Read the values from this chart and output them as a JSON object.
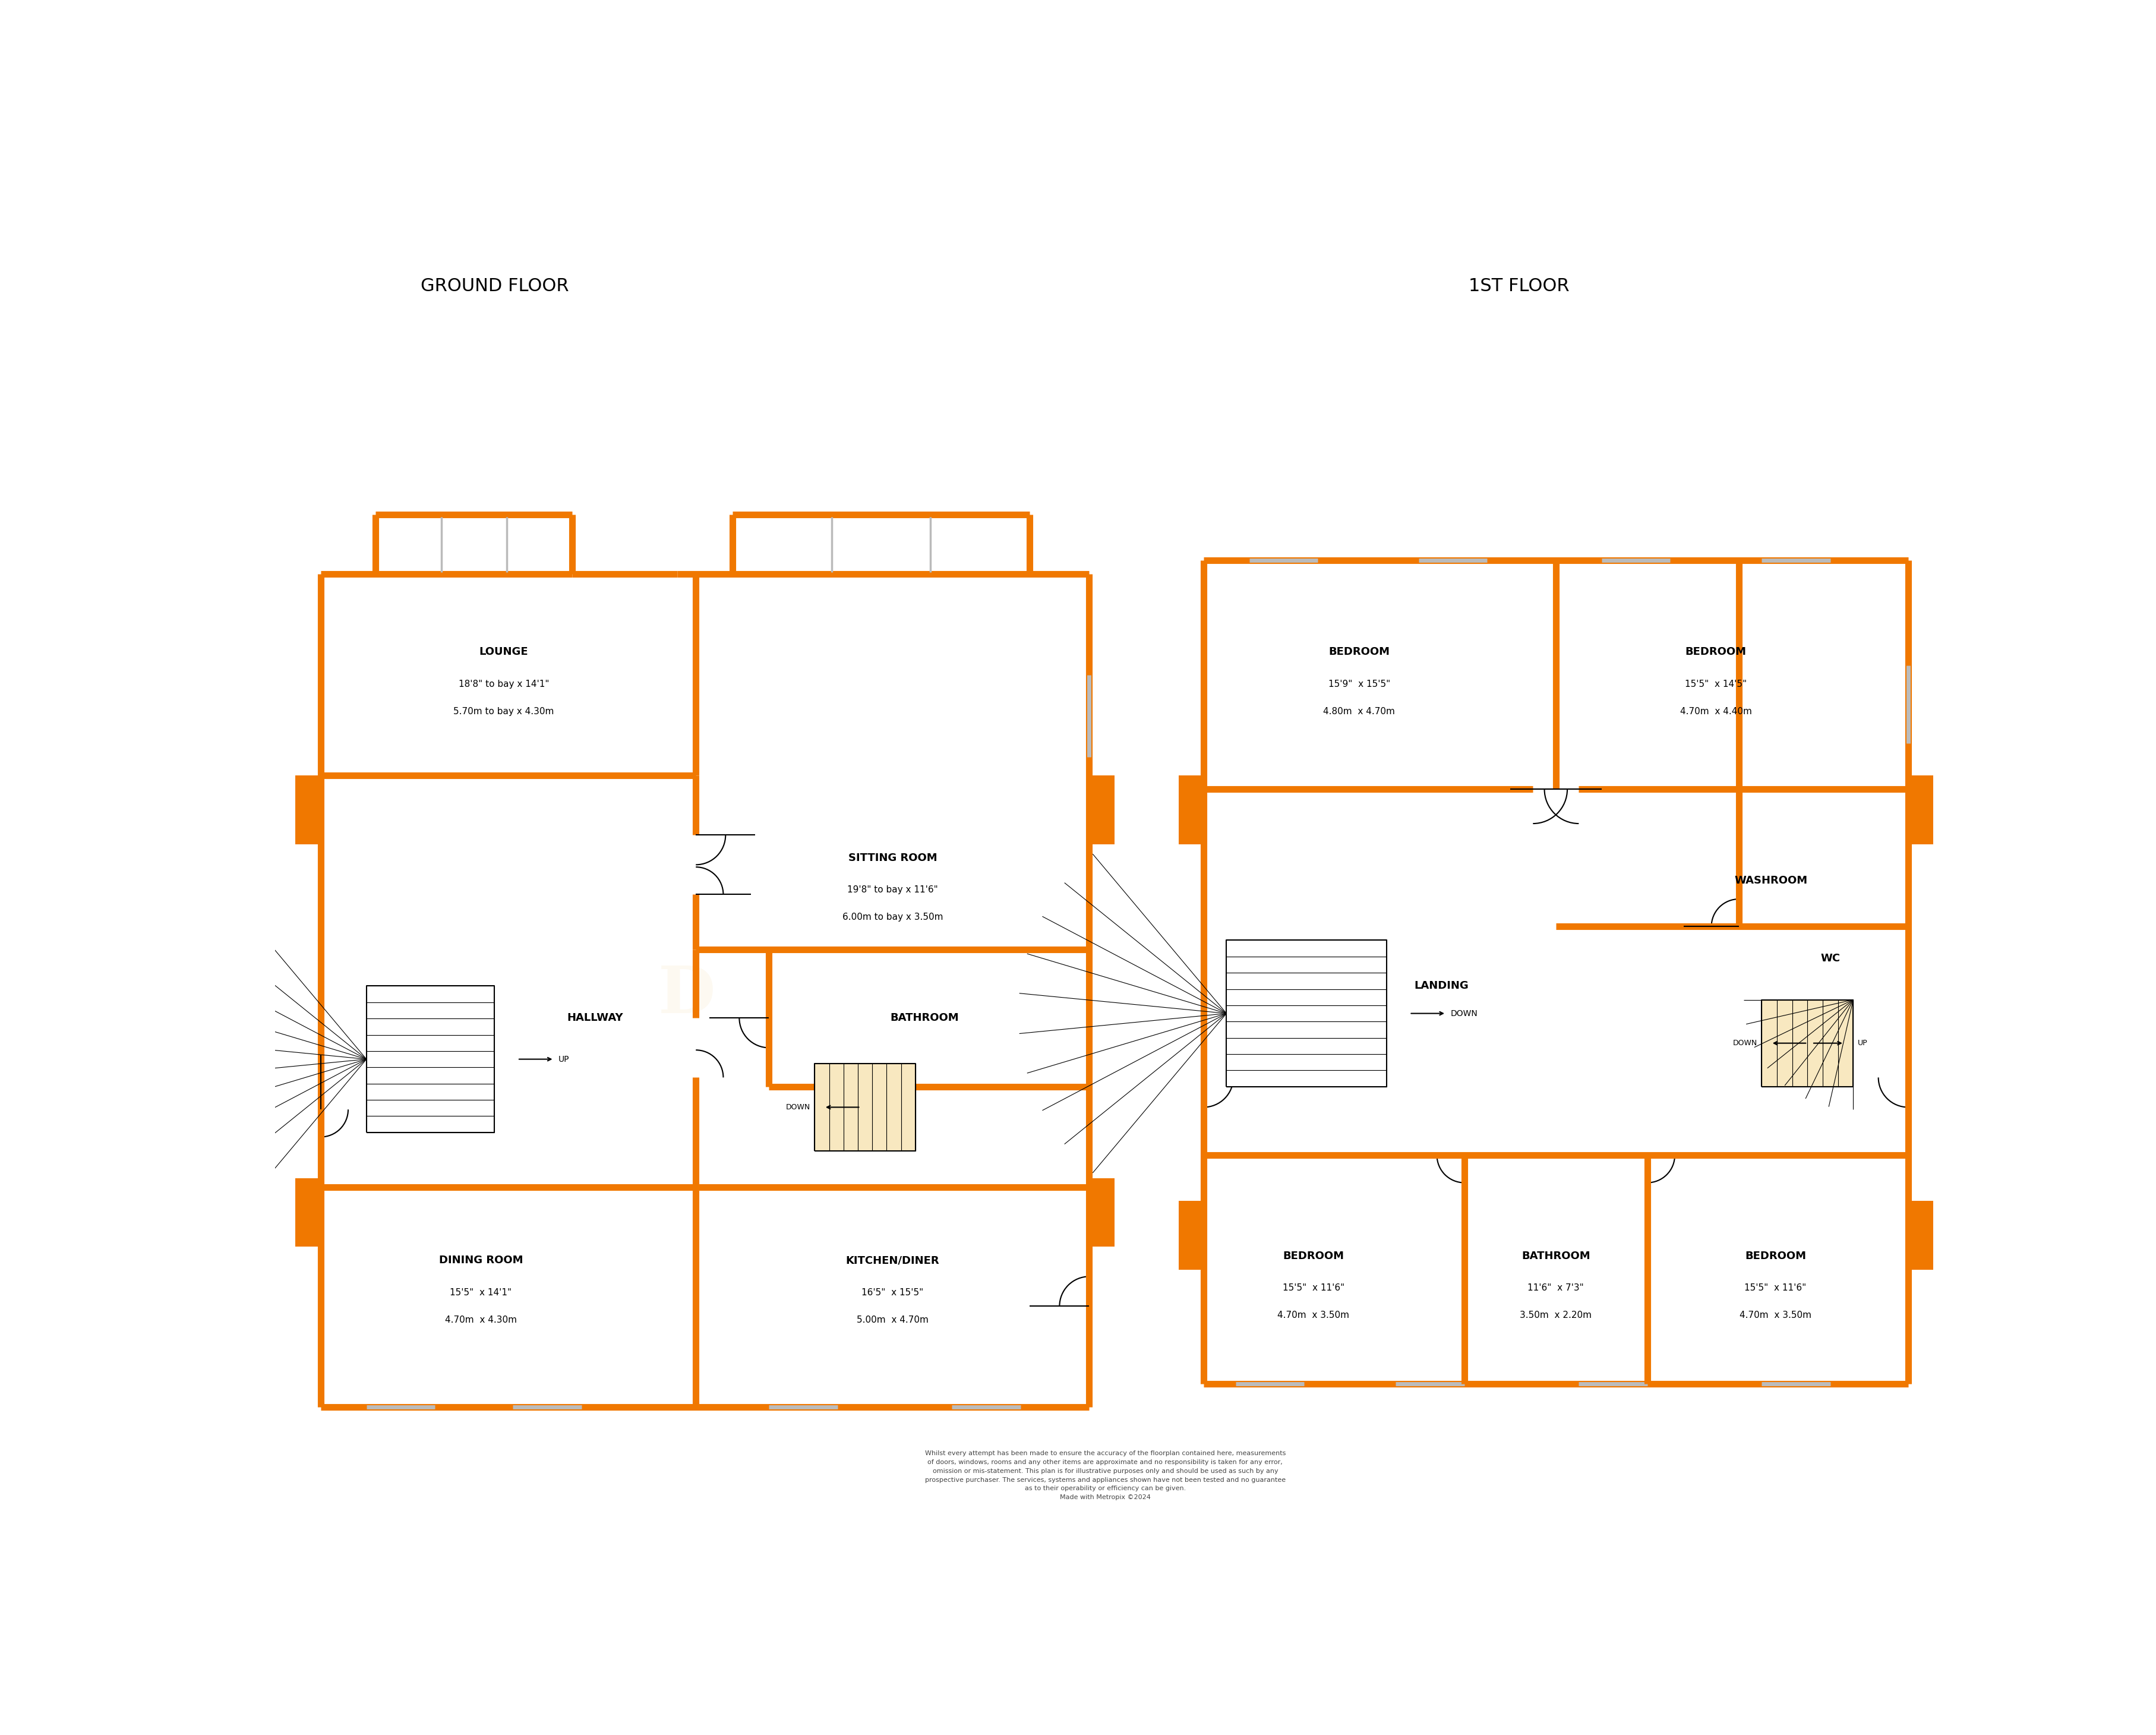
{
  "title_ground": "GROUND FLOOR",
  "title_first": "1ST FLOOR",
  "orange": "#F07800",
  "black": "#000000",
  "white": "#FFFFFF",
  "disclaimer": "Whilst every attempt has been made to ensure the accuracy of the floorplan contained here, measurements\nof doors, windows, rooms and any other items are approximate and no responsibility is taken for any error,\nomission or mis-statement. This plan is for illustrative purposes only and should be used as such by any\nprospective purchaser. The services, systems and appliances shown have not been tested and no guarantee\nas to their operability or efficiency can be given.\nMade with Metropix ©2024"
}
